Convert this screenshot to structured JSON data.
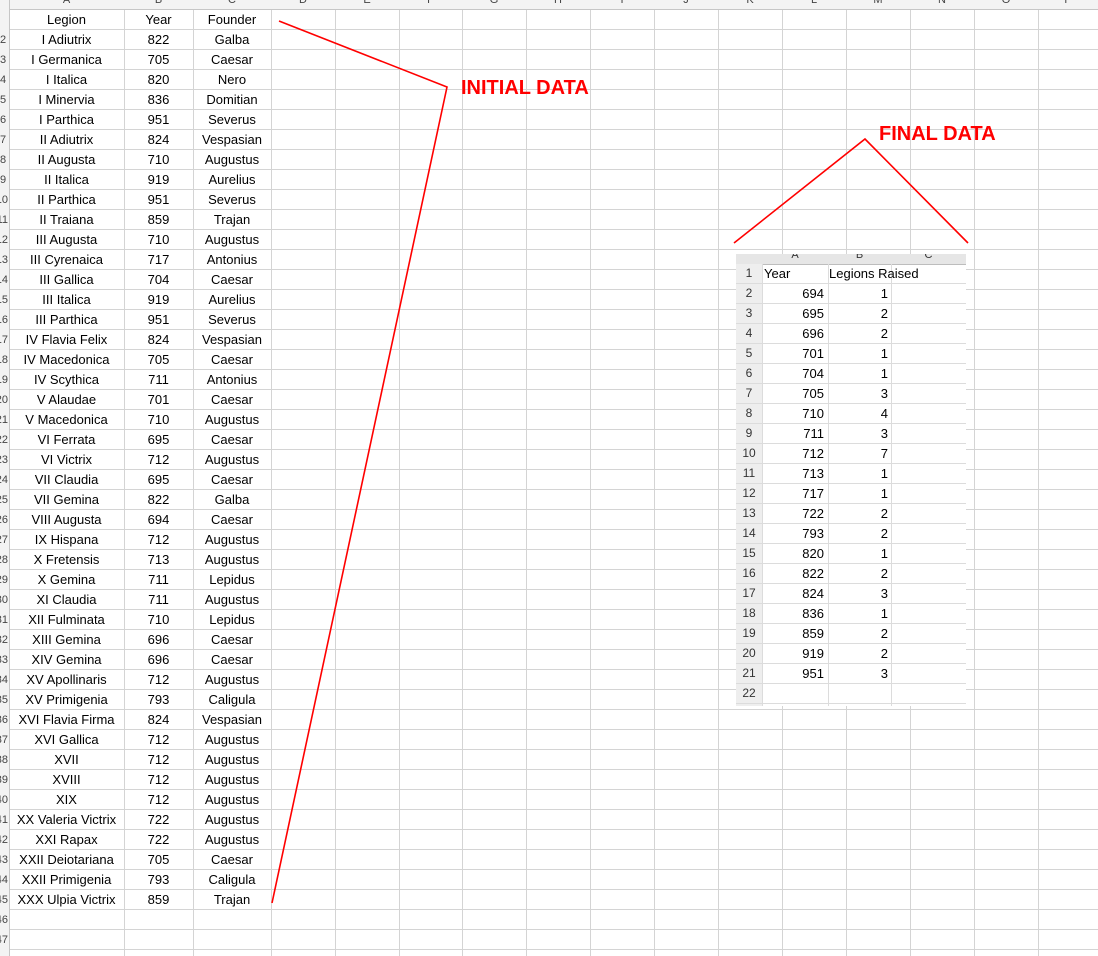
{
  "column_letters": [
    "A",
    "B",
    "C",
    "D",
    "E",
    "F",
    "G",
    "H",
    "I",
    "J",
    "K",
    "L",
    "M",
    "N",
    "O",
    "P"
  ],
  "row_numbers": [
    "2",
    "3",
    "4",
    "5",
    "6",
    "7",
    "8",
    "9",
    "10",
    "11",
    "12",
    "13",
    "14",
    "15",
    "16",
    "17",
    "18",
    "19",
    "20",
    "21",
    "22",
    "23",
    "24",
    "25",
    "26",
    "27",
    "28",
    "29",
    "30",
    "31",
    "32",
    "33",
    "34",
    "35",
    "36",
    "37",
    "38",
    "39",
    "40",
    "41",
    "42",
    "43",
    "44",
    "45",
    "46",
    "47"
  ],
  "initial_table": {
    "headers": [
      "Legion",
      "Year",
      "Founder"
    ],
    "rows": [
      [
        "I Adiutrix",
        "822",
        "Galba"
      ],
      [
        "I Germanica",
        "705",
        "Caesar"
      ],
      [
        "I Italica",
        "820",
        "Nero"
      ],
      [
        "I Minervia",
        "836",
        "Domitian"
      ],
      [
        "I Parthica",
        "951",
        "Severus"
      ],
      [
        "II Adiutrix",
        "824",
        "Vespasian"
      ],
      [
        "II Augusta",
        "710",
        "Augustus"
      ],
      [
        "II Italica",
        "919",
        "Aurelius"
      ],
      [
        "II Parthica",
        "951",
        "Severus"
      ],
      [
        "II Traiana",
        "859",
        "Trajan"
      ],
      [
        "III Augusta",
        "710",
        "Augustus"
      ],
      [
        "III Cyrenaica",
        "717",
        "Antonius"
      ],
      [
        "III Gallica",
        "704",
        "Caesar"
      ],
      [
        "III Italica",
        "919",
        "Aurelius"
      ],
      [
        "III Parthica",
        "951",
        "Severus"
      ],
      [
        "IV Flavia Felix",
        "824",
        "Vespasian"
      ],
      [
        "IV Macedonica",
        "705",
        "Caesar"
      ],
      [
        "IV Scythica",
        "711",
        "Antonius"
      ],
      [
        "V Alaudae",
        "701",
        "Caesar"
      ],
      [
        "V Macedonica",
        "710",
        "Augustus"
      ],
      [
        "VI Ferrata",
        "695",
        "Caesar"
      ],
      [
        "VI Victrix",
        "712",
        "Augustus"
      ],
      [
        "VII Claudia",
        "695",
        "Caesar"
      ],
      [
        "VII Gemina",
        "822",
        "Galba"
      ],
      [
        "VIII Augusta",
        "694",
        "Caesar"
      ],
      [
        "IX Hispana",
        "712",
        "Augustus"
      ],
      [
        "X Fretensis",
        "713",
        "Augustus"
      ],
      [
        "X Gemina",
        "711",
        "Lepidus"
      ],
      [
        "XI Claudia",
        "711",
        "Augustus"
      ],
      [
        "XII Fulminata",
        "710",
        "Lepidus"
      ],
      [
        "XIII Gemina",
        "696",
        "Caesar"
      ],
      [
        "XIV Gemina",
        "696",
        "Caesar"
      ],
      [
        "XV Apollinaris",
        "712",
        "Augustus"
      ],
      [
        "XV Primigenia",
        "793",
        "Caligula"
      ],
      [
        "XVI Flavia Firma",
        "824",
        "Vespasian"
      ],
      [
        "XVI Gallica",
        "712",
        "Augustus"
      ],
      [
        "XVII",
        "712",
        "Augustus"
      ],
      [
        "XVIII",
        "712",
        "Augustus"
      ],
      [
        "XIX",
        "712",
        "Augustus"
      ],
      [
        "XX Valeria Victrix",
        "722",
        "Augustus"
      ],
      [
        "XXI Rapax",
        "722",
        "Augustus"
      ],
      [
        "XXII Deiotariana",
        "705",
        "Caesar"
      ],
      [
        "XXII Primigenia",
        "793",
        "Caligula"
      ],
      [
        "XXX Ulpia Victrix",
        "859",
        "Trajan"
      ]
    ]
  },
  "final_table": {
    "column_letters": [
      "A",
      "B",
      "C"
    ],
    "row_numbers": [
      "1",
      "2",
      "3",
      "4",
      "5",
      "6",
      "7",
      "8",
      "9",
      "10",
      "11",
      "12",
      "13",
      "14",
      "15",
      "16",
      "17",
      "18",
      "19",
      "20",
      "21",
      "22"
    ],
    "headers": [
      "Year",
      "Legions Raised"
    ],
    "rows": [
      [
        "694",
        "1"
      ],
      [
        "695",
        "2"
      ],
      [
        "696",
        "2"
      ],
      [
        "701",
        "1"
      ],
      [
        "704",
        "1"
      ],
      [
        "705",
        "3"
      ],
      [
        "710",
        "4"
      ],
      [
        "711",
        "3"
      ],
      [
        "712",
        "7"
      ],
      [
        "713",
        "1"
      ],
      [
        "717",
        "1"
      ],
      [
        "722",
        "2"
      ],
      [
        "793",
        "2"
      ],
      [
        "820",
        "1"
      ],
      [
        "822",
        "2"
      ],
      [
        "824",
        "3"
      ],
      [
        "836",
        "1"
      ],
      [
        "859",
        "2"
      ],
      [
        "919",
        "2"
      ],
      [
        "951",
        "3"
      ]
    ]
  },
  "annotations": {
    "initial_label": "INITIAL DATA",
    "final_label": "FINAL DATA",
    "color": "#ff0000"
  }
}
